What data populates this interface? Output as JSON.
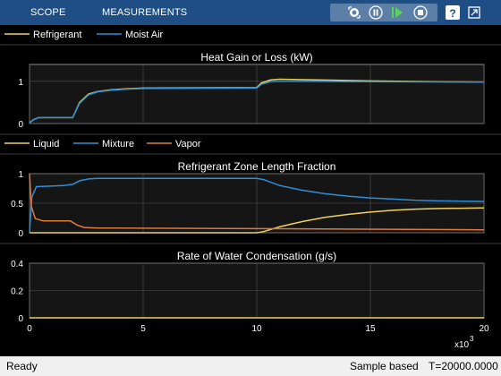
{
  "toolstrip": {
    "tabs": [
      "SCOPE",
      "MEASUREMENTS"
    ],
    "buttons": [
      "snap-icon",
      "pause-icon",
      "step-forward-icon",
      "stop-icon",
      "help-icon",
      "undock-icon"
    ]
  },
  "colors": {
    "toolstrip": "#1f4e85",
    "refrigerant": "#f0d25a",
    "moist_air": "#2f8fd8",
    "liquid": "#f0d25a",
    "mixture": "#2f8fd8",
    "vapor": "#e07a3c",
    "axes_bg": "#151515",
    "grid": "#555555"
  },
  "status": {
    "left": "Ready",
    "mode": "Sample based",
    "time": "T=20000.0000"
  },
  "chart_data": [
    {
      "type": "line",
      "title": "Heat Gain or Loss (kW)",
      "xlabel": "",
      "ylabel": "",
      "xlim": [
        0,
        20000
      ],
      "ylim": [
        0,
        1.4
      ],
      "yticks": [
        0,
        1
      ],
      "xticks": [
        0,
        5000,
        10000,
        15000,
        20000
      ],
      "xticklabels": [
        "",
        "",
        "",
        "",
        ""
      ],
      "grid": true,
      "legend": "top",
      "series": [
        {
          "name": "Refrigerant",
          "color": "#f0d25a",
          "x": [
            0,
            200,
            400,
            1900,
            2200,
            2600,
            3000,
            3600,
            4200,
            5000,
            10000,
            10200,
            10600,
            11000,
            12000,
            15000,
            20000
          ],
          "y": [
            0.02,
            0.1,
            0.14,
            0.14,
            0.5,
            0.7,
            0.76,
            0.8,
            0.82,
            0.84,
            0.85,
            0.96,
            1.03,
            1.05,
            1.04,
            1.01,
            0.98
          ]
        },
        {
          "name": "Moist Air",
          "color": "#2f8fd8",
          "x": [
            0,
            200,
            400,
            1900,
            2200,
            2600,
            3000,
            3600,
            4200,
            5000,
            10000,
            10200,
            10600,
            11000,
            12000,
            15000,
            20000
          ],
          "y": [
            0.02,
            0.1,
            0.14,
            0.14,
            0.48,
            0.68,
            0.75,
            0.79,
            0.81,
            0.83,
            0.84,
            0.93,
            0.99,
            1.0,
            1.0,
            0.99,
            0.98
          ]
        }
      ]
    },
    {
      "type": "line",
      "title": "Refrigerant Zone Length Fraction",
      "xlabel": "",
      "ylabel": "",
      "xlim": [
        0,
        20000
      ],
      "ylim": [
        0,
        1
      ],
      "yticks": [
        0,
        0.5,
        1
      ],
      "yticklabels": [
        "0",
        "0.5",
        "1"
      ],
      "xticks": [
        0,
        5000,
        10000,
        15000,
        20000
      ],
      "xticklabels": [
        "",
        "",
        "",
        "",
        ""
      ],
      "grid": true,
      "legend": "top",
      "series": [
        {
          "name": "Liquid",
          "color": "#f0d25a",
          "x": [
            0,
            10000,
            10300,
            11000,
            12000,
            13000,
            14000,
            15000,
            16000,
            17000,
            18000,
            20000
          ],
          "y": [
            0,
            0,
            0.02,
            0.1,
            0.19,
            0.26,
            0.31,
            0.35,
            0.38,
            0.4,
            0.41,
            0.42
          ]
        },
        {
          "name": "Mixture",
          "color": "#2f8fd8",
          "x": [
            0,
            100,
            300,
            1500,
            1900,
            2200,
            2600,
            3000,
            10000,
            10300,
            11000,
            12000,
            13000,
            14000,
            15000,
            16000,
            17000,
            18000,
            20000
          ],
          "y": [
            0,
            0.6,
            0.78,
            0.8,
            0.82,
            0.88,
            0.91,
            0.92,
            0.92,
            0.9,
            0.8,
            0.72,
            0.66,
            0.62,
            0.59,
            0.57,
            0.55,
            0.54,
            0.53
          ]
        },
        {
          "name": "Vapor",
          "color": "#e07a3c",
          "x": [
            0,
            80,
            250,
            600,
            1800,
            2100,
            2400,
            3000,
            10000,
            20000
          ],
          "y": [
            1,
            0.45,
            0.24,
            0.2,
            0.2,
            0.13,
            0.09,
            0.08,
            0.07,
            0.05
          ]
        }
      ]
    },
    {
      "type": "line",
      "title": "Rate of Water Condensation (g/s)",
      "xlabel": "",
      "ylabel": "",
      "xlim": [
        0,
        20000
      ],
      "ylim": [
        0,
        0.4
      ],
      "yticks": [
        0,
        0.2,
        0.4
      ],
      "yticklabels": [
        "0",
        "0.2",
        "0.4"
      ],
      "xticks": [
        0,
        5000,
        10000,
        15000,
        20000
      ],
      "xticklabels": [
        "0",
        "5",
        "10",
        "15",
        "20"
      ],
      "x_exponent": "x10",
      "x_exponent_power": "3",
      "grid": true,
      "series": [
        {
          "name": "",
          "color": "#f0d25a",
          "x": [
            0,
            20000
          ],
          "y": [
            0,
            0
          ]
        }
      ]
    }
  ]
}
